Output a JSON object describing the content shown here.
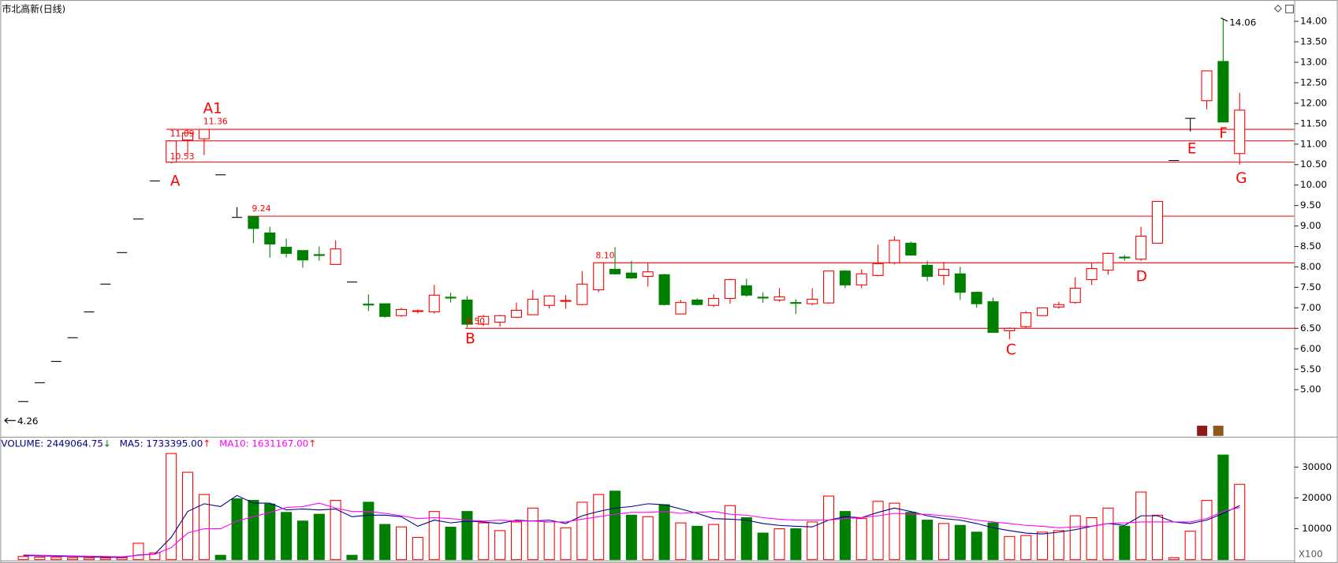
{
  "chart_data": [
    {
      "type": "candlestick",
      "title": "市北高新(日线)",
      "up_color": "#ff0000",
      "down_color": "#008000",
      "flat_color": "#000000",
      "ylim": [
        3.85,
        14.48
      ],
      "yticks": [
        {
          "value": 5,
          "label": "5.00"
        },
        {
          "value": 5.5,
          "label": "5.50"
        },
        {
          "value": 6,
          "label": "6.00"
        },
        {
          "value": 6.5,
          "label": "6.50"
        },
        {
          "value": 7,
          "label": "7.00"
        },
        {
          "value": 7.5,
          "label": "7.50"
        },
        {
          "value": 8,
          "label": "8.00"
        },
        {
          "value": 8.5,
          "label": "8.50"
        },
        {
          "value": 9,
          "label": "9.00"
        },
        {
          "value": 9.5,
          "label": "9.50"
        },
        {
          "value": 10,
          "label": "10.00"
        },
        {
          "value": 10.5,
          "label": "10.50"
        },
        {
          "value": 11,
          "label": "11.00"
        },
        {
          "value": 11.5,
          "label": "11.50"
        },
        {
          "value": 12,
          "label": "12.00"
        },
        {
          "value": 12.5,
          "label": "12.50"
        },
        {
          "value": 13,
          "label": "13.00"
        },
        {
          "value": 13.5,
          "label": "13.50"
        },
        {
          "value": 14,
          "label": "14.00"
        }
      ],
      "open": [
        4.71,
        5.17,
        5.69,
        6.27,
        6.9,
        7.58,
        8.35,
        9.17,
        10.1,
        10.56,
        11.1,
        11.13,
        10.25,
        9.21,
        9.23,
        8.83,
        8.48,
        8.4,
        8.3,
        8.06,
        7.63,
        7.09,
        7.1,
        6.81,
        6.91,
        6.9,
        7.26,
        7.19,
        6.6,
        6.65,
        6.77,
        6.83,
        7.06,
        7.16,
        7.08,
        7.44,
        7.94,
        7.85,
        7.77,
        7.81,
        6.85,
        7.19,
        7.06,
        7.23,
        7.54,
        7.26,
        7.19,
        7.13,
        7.1,
        7.12,
        7.9,
        7.56,
        7.79,
        8.1,
        8.58,
        8.04,
        7.79,
        7.83,
        7.38,
        7.15,
        6.44,
        6.54,
        6.81,
        7.02,
        7.13,
        7.69,
        7.92,
        8.24,
        8.19,
        8.58,
        10.6,
        11.63,
        12.06,
        13.02,
        10.77
      ],
      "high": [
        4.71,
        5.17,
        5.69,
        6.27,
        6.9,
        7.58,
        8.35,
        9.17,
        10.1,
        11.09,
        11.35,
        11.36,
        10.25,
        9.46,
        9.24,
        8.98,
        8.69,
        8.4,
        8.5,
        8.65,
        7.63,
        7.33,
        7.1,
        7.0,
        6.96,
        7.56,
        7.37,
        7.29,
        6.83,
        6.83,
        7.13,
        7.44,
        7.31,
        7.31,
        7.9,
        8.1,
        8.48,
        8.15,
        8.1,
        7.83,
        7.19,
        7.23,
        7.33,
        7.71,
        7.71,
        7.38,
        7.48,
        7.21,
        7.48,
        7.9,
        7.92,
        7.94,
        8.54,
        8.75,
        8.62,
        8.15,
        8.12,
        8.0,
        7.4,
        7.25,
        6.52,
        6.92,
        7.0,
        7.15,
        7.75,
        8.1,
        8.35,
        8.29,
        8.98,
        9.6,
        10.6,
        11.63,
        12.79,
        14.06,
        12.25
      ],
      "low": [
        4.71,
        5.17,
        5.69,
        6.27,
        6.9,
        7.58,
        8.35,
        9.17,
        10.1,
        10.53,
        10.73,
        10.73,
        10.25,
        9.21,
        8.58,
        8.23,
        8.23,
        7.98,
        8.15,
        8.06,
        7.63,
        6.92,
        6.76,
        6.78,
        6.86,
        6.86,
        7.13,
        6.52,
        6.56,
        6.54,
        6.75,
        6.83,
        6.98,
        6.98,
        7.06,
        7.38,
        7.81,
        7.71,
        7.52,
        7.06,
        6.85,
        7.06,
        7.02,
        7.1,
        7.27,
        7.12,
        7.15,
        6.85,
        7.06,
        7.1,
        7.48,
        7.48,
        7.77,
        8.06,
        8.27,
        7.65,
        7.56,
        7.19,
        7.0,
        6.4,
        6.23,
        6.5,
        6.81,
        6.98,
        7.1,
        7.56,
        7.81,
        8.15,
        8.15,
        8.58,
        10.6,
        11.31,
        11.85,
        11.54,
        10.5
      ],
      "close": [
        4.71,
        5.17,
        5.69,
        6.27,
        6.9,
        7.58,
        8.35,
        9.17,
        10.1,
        11.08,
        11.27,
        11.36,
        10.25,
        9.21,
        8.94,
        8.56,
        8.33,
        8.17,
        8.28,
        8.44,
        7.63,
        7.07,
        6.79,
        6.96,
        6.93,
        7.31,
        7.24,
        6.6,
        6.79,
        6.81,
        6.94,
        7.21,
        7.29,
        7.18,
        7.58,
        8.1,
        7.83,
        7.73,
        7.88,
        7.08,
        7.13,
        7.08,
        7.23,
        7.69,
        7.31,
        7.24,
        7.27,
        7.11,
        7.21,
        7.9,
        7.56,
        7.83,
        8.08,
        8.65,
        8.29,
        7.77,
        7.94,
        7.38,
        7.1,
        6.4,
        6.5,
        6.88,
        7.0,
        7.08,
        7.48,
        7.96,
        8.33,
        8.22,
        8.75,
        9.6,
        10.6,
        11.63,
        12.79,
        11.54,
        11.83
      ],
      "hlines": [
        11.36,
        11.08,
        10.56,
        9.24,
        8.1,
        6.5
      ],
      "annotations": [
        "A",
        "A1",
        "B",
        "C",
        "D",
        "E",
        "F",
        "G"
      ],
      "price_labels": [
        "11.09",
        "10.53",
        "11.36",
        "9.24",
        "8.10",
        "6.50",
        "14.06",
        "4.26"
      ]
    },
    {
      "type": "bar",
      "unit_label": "X100",
      "ylim": [
        0,
        39000
      ],
      "yticks": [
        10000,
        20000,
        30000
      ],
      "legend": [
        "VOLUME: 2449064.75",
        "MA5: 1733395.00",
        "MA10: 1631167.00"
      ],
      "legend_arrows": [
        "↓",
        "↑",
        "↑"
      ],
      "series": [
        {
          "color": "#000080",
          "values": [
            1000,
            800,
            700,
            600,
            500,
            500,
            600,
            5300,
            2200,
            34400,
            28300,
            21100,
            1400,
            19700,
            19200,
            18000,
            15300,
            12500,
            14700,
            19200,
            1400,
            18600,
            11400,
            10600,
            7200,
            15600,
            10500,
            15600,
            11900,
            9400,
            12200,
            16700,
            12200,
            10300,
            18600,
            21100,
            22200,
            14400,
            13900,
            17800,
            11900,
            10800,
            11400,
            17500,
            13600,
            8600,
            10000,
            10000,
            12200,
            20600,
            15600,
            13300,
            18900,
            18300,
            15300,
            12800,
            11700,
            11100,
            8900,
            11900,
            7500,
            7800,
            8900,
            9400,
            14200,
            13600,
            16700,
            10800,
            21900,
            14400,
            600,
            9200,
            19200,
            33900,
            24400
          ]
        },
        {
          "color": "#00008b",
          "values": [
            1300,
            1200,
            1100,
            1000,
            900,
            800,
            700,
            1500,
            1800,
            7200,
            15600,
            18100,
            17200,
            20800,
            18300,
            18300,
            16100,
            16400,
            16100,
            16400,
            13900,
            14400,
            14400,
            13900,
            10800,
            12800,
            11900,
            12500,
            12200,
            11700,
            12800,
            12500,
            12800,
            11700,
            14200,
            15600,
            16700,
            17200,
            18100,
            17800,
            16400,
            15000,
            13300,
            13100,
            12800,
            11700,
            11100,
            10800,
            10600,
            12800,
            13900,
            13600,
            15300,
            16700,
            15600,
            14200,
            13300,
            12800,
            11700,
            10300,
            9400,
            8600,
            8300,
            8900,
            9700,
            10800,
            11700,
            11100,
            14200,
            14200,
            12200,
            11700,
            12800,
            15000,
            17500
          ]
        },
        {
          "color": "#ff00ff",
          "values": [
            1500,
            1400,
            1300,
            1200,
            1100,
            1000,
            900,
            1400,
            1700,
            3900,
            8600,
            10000,
            10000,
            12500,
            13900,
            15300,
            16900,
            17200,
            18300,
            16700,
            15600,
            15600,
            15000,
            14200,
            13300,
            13600,
            13300,
            12800,
            12500,
            12800,
            12500,
            12500,
            12200,
            12200,
            13100,
            13900,
            14700,
            15300,
            15300,
            15600,
            15000,
            15300,
            15600,
            14700,
            14400,
            13600,
            13100,
            12800,
            12800,
            12800,
            13300,
            13600,
            14200,
            15000,
            14700,
            14700,
            14200,
            13600,
            12800,
            12200,
            11700,
            11100,
            10800,
            10300,
            10600,
            10800,
            11700,
            11900,
            12200,
            12200,
            12200,
            12200,
            13300,
            15600,
            16900
          ]
        }
      ]
    }
  ]
}
